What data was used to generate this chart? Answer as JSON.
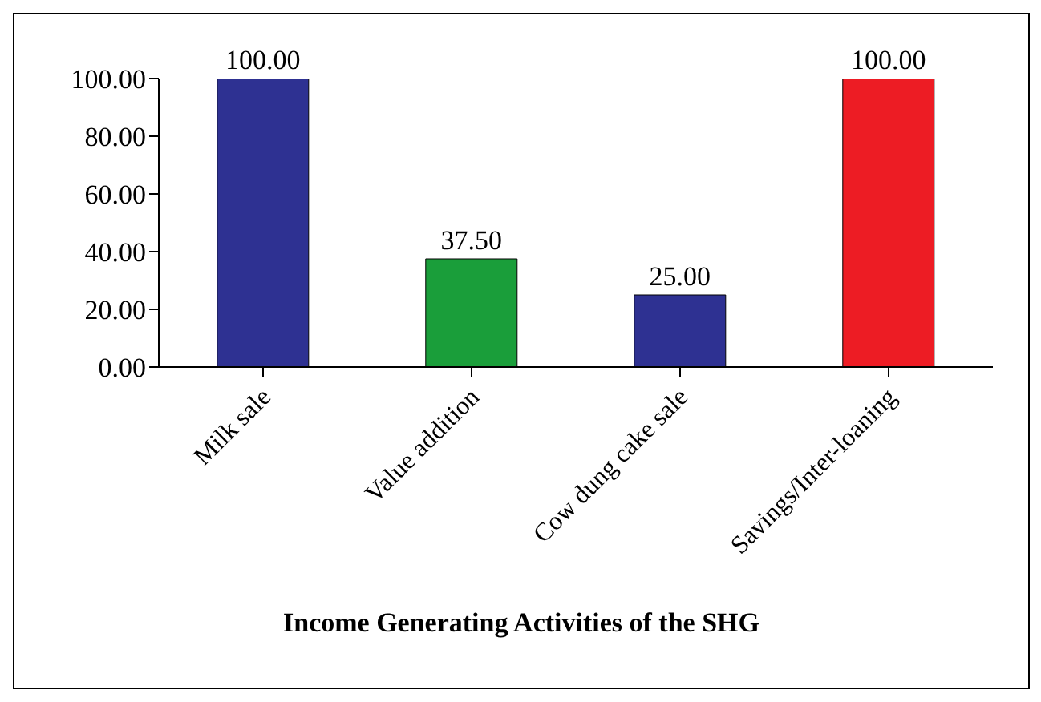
{
  "chart_data": {
    "type": "bar",
    "xlabel": "Income Generating Activities of the SHG",
    "categories": [
      "Milk sale",
      "Value addition",
      "Cow dung cake sale",
      "Savings/Inter-loaning"
    ],
    "values": [
      100,
      37.5,
      25,
      100
    ],
    "colors": [
      "#2e3192",
      "#1a9e3a",
      "#2e3192",
      "#ed1c24"
    ],
    "value_labels": [
      "100.00",
      "37.50",
      "25.00",
      "100.00"
    ],
    "ylim": [
      0,
      100
    ],
    "yticks": [
      {
        "value": 0,
        "label": "0.00"
      },
      {
        "value": 20,
        "label": "20.00"
      },
      {
        "value": 40,
        "label": "40.00"
      },
      {
        "value": 60,
        "label": "60.00"
      },
      {
        "value": 80,
        "label": "80.00"
      },
      {
        "value": 100,
        "label": "100.00"
      }
    ],
    "grid": false,
    "legend": false
  }
}
